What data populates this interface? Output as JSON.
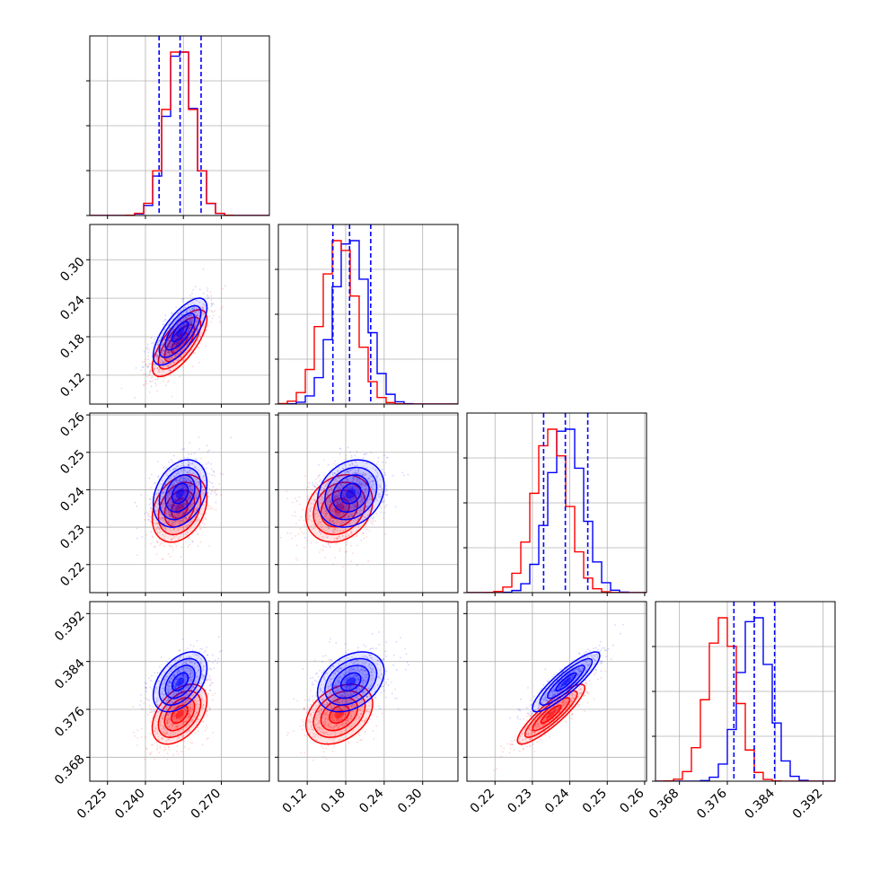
{
  "chart_data": {
    "type": "corner",
    "colors": {
      "blue": "#0000ff",
      "red": "#ff0000",
      "grid": "#b0b0b0"
    },
    "series": [
      {
        "color": "blue"
      },
      {
        "color": "red"
      }
    ],
    "params": [
      {
        "range": [
          0.218,
          0.289
        ],
        "ticks": [
          0.225,
          0.24,
          0.255,
          0.27
        ],
        "ticklabels": [
          "0.225",
          "0.240",
          "0.255",
          "0.270"
        ],
        "blue": {
          "mean": 0.2537,
          "sd": 0.0053
        },
        "red": {
          "mean": 0.2535,
          "sd": 0.0054
        },
        "quantiles": [
          0.2454,
          0.2537,
          0.262
        ]
      },
      {
        "range": [
          0.075,
          0.355
        ],
        "ticks": [
          0.12,
          0.18,
          0.24,
          0.3
        ],
        "ticklabels": [
          "0.12",
          "0.18",
          "0.24",
          "0.30"
        ],
        "blue": {
          "mean": 0.188,
          "sd": 0.026
        },
        "red": {
          "mean": 0.17,
          "sd": 0.026
        },
        "quantiles": [
          0.16,
          0.186,
          0.219
        ]
      },
      {
        "range": [
          0.2125,
          0.2605
        ],
        "ticks": [
          0.22,
          0.23,
          0.24,
          0.25,
          0.26
        ],
        "ticklabels": [
          "0.22",
          "0.23",
          "0.24",
          "0.25",
          "0.26"
        ],
        "blue": {
          "mean": 0.239,
          "sd": 0.0045
        },
        "red": {
          "mean": 0.235,
          "sd": 0.0045
        },
        "quantiles": [
          0.233,
          0.2388,
          0.2448
        ]
      },
      {
        "range": [
          0.364,
          0.394
        ],
        "ticks": [
          0.368,
          0.376,
          0.384,
          0.392
        ],
        "ticklabels": [
          "0.368",
          "0.376",
          "0.384",
          "0.392"
        ],
        "blue": {
          "mean": 0.3806,
          "sd": 0.0025
        },
        "red": {
          "mean": 0.3752,
          "sd": 0.0025
        },
        "quantiles": [
          0.3771,
          0.3805,
          0.3839
        ]
      }
    ],
    "correlations": {
      "1-0": 0.72,
      "2-0": 0.3,
      "2-1": 0.22,
      "3-0": 0.45,
      "3-1": 0.35,
      "3-2": 0.88
    }
  }
}
